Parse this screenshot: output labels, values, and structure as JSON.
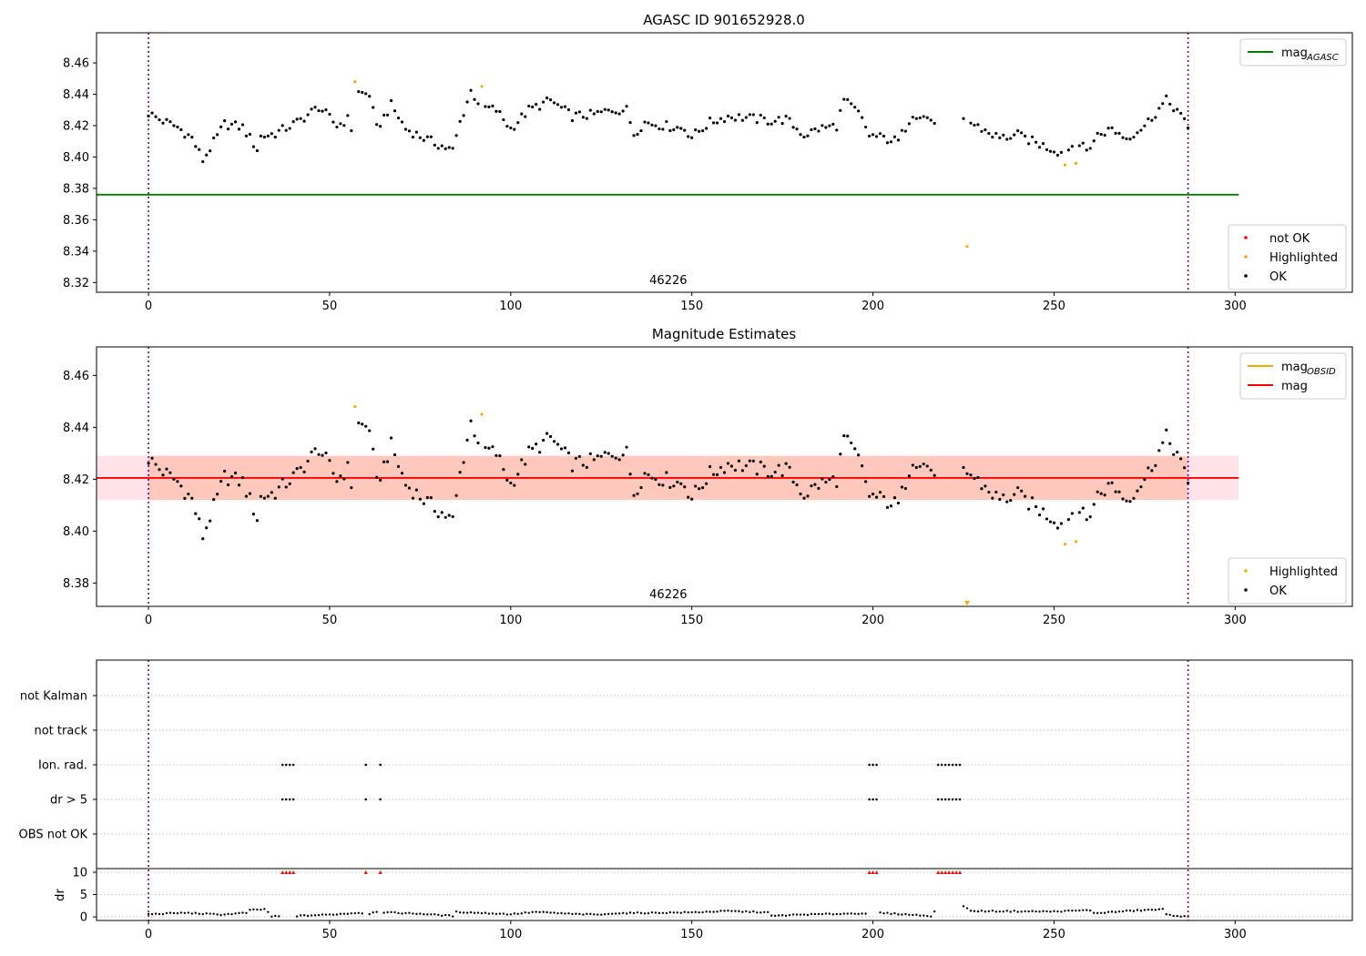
{
  "colors": {
    "ok": "#000000",
    "highlighted": "#ffa500",
    "not_ok": "#ff0000",
    "agasc_line": "#008000",
    "mag_line": "#ff0000",
    "mag_obsid": "#ffa500",
    "band_pink": "#ffc0cb",
    "band_orange": "#ffa07a",
    "obs_boundary": "#800080",
    "grid": "#b0b0b0"
  },
  "chart_data": [
    {
      "type": "scatter",
      "title": "AGASC ID 901652928.0",
      "xlim": [
        -14.35,
        332.35
      ],
      "ylim": [
        8.3138,
        8.4792
      ],
      "xticks": [
        0,
        50,
        100,
        150,
        200,
        250,
        300
      ],
      "yticks": [
        8.32,
        8.34,
        8.36,
        8.38,
        8.4,
        8.42,
        8.44,
        8.46
      ],
      "obs_boundaries": [
        0,
        287
      ],
      "obs_label": {
        "text": "46226",
        "x": 143.5
      },
      "hlines": [
        {
          "name": "mag_AGASC",
          "y": 8.376,
          "x": [
            -14.35,
            301
          ],
          "color_key": "agasc_line"
        }
      ],
      "legend_top": [
        {
          "label": "mag",
          "sub": "AGASC",
          "style": "line",
          "color_key": "agasc_line"
        }
      ],
      "legend_bottom": [
        {
          "label": "not OK",
          "style": "dot",
          "color_key": "not_ok"
        },
        {
          "label": "Highlighted",
          "style": "dot",
          "color_key": "highlighted"
        },
        {
          "label": "OK",
          "style": "dot",
          "color_key": "ok"
        }
      ],
      "highlighted": [
        [
          57,
          8.448
        ],
        [
          92,
          8.445
        ],
        [
          226,
          8.343
        ],
        [
          253,
          8.395
        ],
        [
          256,
          8.396
        ]
      ]
    },
    {
      "type": "scatter",
      "title": "Magnitude Estimates",
      "xlim": [
        -14.35,
        332.35
      ],
      "ylim": [
        8.371,
        8.471
      ],
      "xticks": [
        0,
        50,
        100,
        150,
        200,
        250,
        300
      ],
      "yticks": [
        8.38,
        8.4,
        8.42,
        8.44,
        8.46
      ],
      "obs_boundaries": [
        0,
        287
      ],
      "obs_label": {
        "text": "46226",
        "x": 143.5
      },
      "mag_line": {
        "y": 8.4205,
        "x": [
          -14.35,
          301
        ]
      },
      "band_pink": {
        "y": [
          8.412,
          8.429
        ],
        "x": [
          -14.35,
          301
        ]
      },
      "band_orange": {
        "y": [
          8.412,
          8.429
        ],
        "x": [
          0,
          287
        ]
      },
      "legend_top": [
        {
          "label": "mag",
          "sub": "OBSID",
          "style": "line",
          "color_key": "mag_obsid"
        },
        {
          "label": "mag",
          "sub": "",
          "style": "line",
          "color_key": "mag_line"
        }
      ],
      "legend_bottom": [
        {
          "label": "Highlighted",
          "style": "dot",
          "color_key": "highlighted"
        },
        {
          "label": "OK",
          "style": "dot",
          "color_key": "ok"
        }
      ],
      "highlighted": [
        [
          57,
          8.448
        ],
        [
          92,
          8.445
        ],
        [
          253,
          8.395
        ],
        [
          256,
          8.396
        ]
      ],
      "below_range_marker": {
        "x": 226
      }
    },
    {
      "type": "scatter",
      "title": "",
      "xlim": [
        -14.35,
        332.35
      ],
      "xticks": [
        0,
        50,
        100,
        150,
        200,
        250,
        300
      ],
      "obs_boundaries": [
        0,
        287
      ],
      "flag_labels": [
        "not Kalman",
        "not track",
        "Ion. rad.",
        "dr > 5",
        "OBS not OK"
      ],
      "flags": {
        "Ion. rad.": [
          37,
          38,
          39,
          40,
          60,
          64,
          199,
          200,
          201,
          218,
          219,
          220,
          221,
          222,
          223,
          224
        ],
        "dr > 5": [
          37,
          38,
          39,
          40,
          60,
          64,
          199,
          200,
          201,
          218,
          219,
          220,
          221,
          222,
          223,
          224
        ]
      },
      "dr_ylabel": "dr",
      "dr_ylim": [
        -0.4,
        10.4
      ],
      "dr_yticks": [
        0,
        5,
        10
      ],
      "dr_clipped_x": [
        37,
        38,
        39,
        40,
        60,
        64,
        199,
        200,
        201,
        218,
        219,
        220,
        221,
        222,
        223,
        224
      ],
      "dr_clip_value": 10,
      "dr_anchors": [
        [
          0,
          0.6
        ],
        [
          10,
          0.9
        ],
        [
          20,
          0.5
        ],
        [
          27,
          0.9
        ],
        [
          28,
          1.5
        ],
        [
          32,
          1.7
        ],
        [
          33,
          1.1
        ],
        [
          34,
          0.1
        ],
        [
          36,
          0.1
        ],
        [
          41,
          0.2
        ],
        [
          50,
          0.5
        ],
        [
          58,
          0.9
        ],
        [
          61,
          0.7
        ],
        [
          63,
          1.2
        ],
        [
          65,
          1.0
        ],
        [
          75,
          0.7
        ],
        [
          84,
          0.2
        ],
        [
          85,
          1.1
        ],
        [
          100,
          0.6
        ],
        [
          107,
          1.1
        ],
        [
          118,
          0.6
        ],
        [
          126,
          0.5
        ],
        [
          128,
          0.8
        ],
        [
          150,
          1.0
        ],
        [
          160,
          1.3
        ],
        [
          171,
          1.0
        ],
        [
          172,
          0.2
        ],
        [
          180,
          0.5
        ],
        [
          198,
          0.8
        ],
        [
          202,
          0.9
        ],
        [
          210,
          0.5
        ],
        [
          216,
          0.2
        ],
        [
          217,
          1.2
        ],
        [
          225,
          2.5
        ],
        [
          227,
          1.3
        ],
        [
          250,
          1.2
        ],
        [
          260,
          1.5
        ],
        [
          261,
          0.8
        ],
        [
          270,
          1.3
        ],
        [
          280,
          1.7
        ],
        [
          281,
          0.5
        ],
        [
          287,
          0.0
        ]
      ]
    }
  ],
  "series_anchors": [
    [
      0,
      8.428
    ],
    [
      3,
      8.424
    ],
    [
      8,
      8.419
    ],
    [
      12,
      8.412
    ],
    [
      15,
      8.398
    ],
    [
      19,
      8.413
    ],
    [
      21,
      8.421
    ],
    [
      26,
      8.419
    ],
    [
      30,
      8.405
    ],
    [
      31,
      8.413
    ],
    [
      35,
      8.415
    ],
    [
      41,
      8.422
    ],
    [
      47,
      8.432
    ],
    [
      52,
      8.42
    ],
    [
      55,
      8.424
    ],
    [
      56,
      8.418
    ],
    [
      58,
      8.441
    ],
    [
      61,
      8.44
    ],
    [
      63,
      8.418
    ],
    [
      67,
      8.433
    ],
    [
      71,
      8.418
    ],
    [
      77,
      8.411
    ],
    [
      80,
      8.408
    ],
    [
      84,
      8.404
    ],
    [
      86,
      8.422
    ],
    [
      89,
      8.442
    ],
    [
      92,
      8.432
    ],
    [
      96,
      8.43
    ],
    [
      100,
      8.418
    ],
    [
      105,
      8.43
    ],
    [
      111,
      8.436
    ],
    [
      117,
      8.426
    ],
    [
      123,
      8.427
    ],
    [
      128,
      8.43
    ],
    [
      132,
      8.43
    ],
    [
      134,
      8.415
    ],
    [
      137,
      8.422
    ],
    [
      148,
      8.418
    ],
    [
      150,
      8.413
    ],
    [
      155,
      8.422
    ],
    [
      160,
      8.426
    ],
    [
      165,
      8.425
    ],
    [
      172,
      8.423
    ],
    [
      176,
      8.424
    ],
    [
      181,
      8.414
    ],
    [
      185,
      8.418
    ],
    [
      190,
      8.42
    ],
    [
      192,
      8.436
    ],
    [
      196,
      8.428
    ],
    [
      199,
      8.414
    ],
    [
      203,
      8.412
    ],
    [
      207,
      8.41
    ],
    [
      211,
      8.428
    ],
    [
      216,
      8.424
    ],
    [
      217,
      8.422
    ],
    [
      225,
      8.424
    ],
    [
      230,
      8.418
    ],
    [
      235,
      8.412
    ],
    [
      240,
      8.414
    ],
    [
      245,
      8.409
    ],
    [
      253,
      8.402
    ],
    [
      256,
      8.41
    ],
    [
      259,
      8.404
    ],
    [
      262,
      8.414
    ],
    [
      266,
      8.418
    ],
    [
      270,
      8.412
    ],
    [
      275,
      8.42
    ],
    [
      281,
      8.436
    ],
    [
      284,
      8.43
    ],
    [
      287,
      8.418
    ]
  ],
  "series_gaps": [
    [
      218,
      224
    ]
  ]
}
